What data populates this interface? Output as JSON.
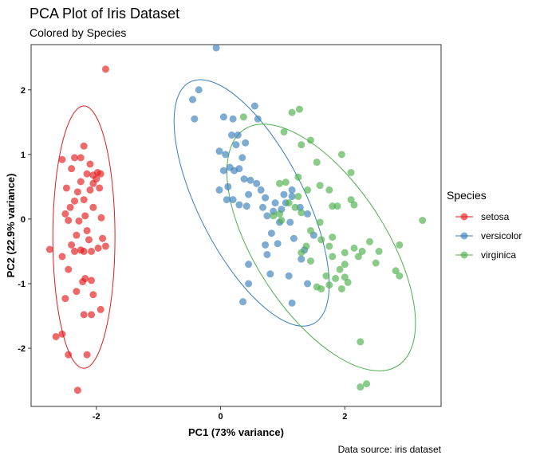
{
  "chart_data": {
    "type": "scatter",
    "title": "PCA Plot of Iris Dataset",
    "subtitle": "Colored by Species",
    "xlabel": "PC1 (73% variance)",
    "ylabel": "PC2 (22.9% variance)",
    "caption": "Data source: iris dataset",
    "xlim": [
      -3.05,
      3.55
    ],
    "ylim": [
      -2.9,
      2.7
    ],
    "x_ticks": [
      -2,
      0,
      2
    ],
    "x_tick_labels": [
      "-2",
      "0",
      "2"
    ],
    "y_ticks": [
      -2,
      -1,
      0,
      1,
      2
    ],
    "y_tick_labels": [
      "-2",
      "-1",
      "0",
      "1",
      "2"
    ],
    "grid": false,
    "legend": {
      "title": "Species",
      "position": "right"
    },
    "series": [
      {
        "name": "setosa",
        "color": "#E41A1C",
        "ellipse": {
          "cx": -2.2,
          "cy": -0.28,
          "rx": 0.5,
          "ry": 2.03,
          "angle": 0
        },
        "points": [
          [
            -1.85,
            2.32
          ],
          [
            -2.2,
            1.13
          ],
          [
            -2.35,
            0.95
          ],
          [
            -2.25,
            0.95
          ],
          [
            -2.1,
            0.85
          ],
          [
            -2.4,
            0.78
          ],
          [
            -2.55,
            0.92
          ],
          [
            -1.98,
            0.72
          ],
          [
            -2.05,
            0.68
          ],
          [
            -1.93,
            0.7
          ],
          [
            -2.0,
            0.62
          ],
          [
            -2.15,
            0.7
          ],
          [
            -2.25,
            0.58
          ],
          [
            -2.05,
            0.55
          ],
          [
            -1.95,
            0.48
          ],
          [
            -2.48,
            0.48
          ],
          [
            -2.3,
            0.42
          ],
          [
            -2.1,
            0.45
          ],
          [
            -2.2,
            0.3
          ],
          [
            -2.35,
            0.28
          ],
          [
            -2.05,
            0.18
          ],
          [
            -2.42,
            0.18
          ],
          [
            -2.5,
            0.08
          ],
          [
            -2.18,
            0.05
          ],
          [
            -1.92,
            0.02
          ],
          [
            -2.28,
            -0.03
          ],
          [
            -2.45,
            -0.02
          ],
          [
            -2.15,
            -0.18
          ],
          [
            -2.32,
            -0.25
          ],
          [
            -2.12,
            -0.32
          ],
          [
            -1.9,
            -0.3
          ],
          [
            -2.4,
            -0.4
          ],
          [
            -1.85,
            -0.42
          ],
          [
            -1.97,
            -0.45
          ],
          [
            -2.25,
            -0.48
          ],
          [
            -2.75,
            -0.47
          ],
          [
            -2.35,
            -0.5
          ],
          [
            -2.2,
            -0.5
          ],
          [
            -2.08,
            -0.5
          ],
          [
            -2.55,
            -0.58
          ],
          [
            -2.45,
            -0.78
          ],
          [
            -2.18,
            -0.92
          ],
          [
            -2.22,
            -0.97
          ],
          [
            -2.08,
            -0.95
          ],
          [
            -2.32,
            -1.12
          ],
          [
            -2.05,
            -1.17
          ],
          [
            -2.5,
            -1.23
          ],
          [
            -1.93,
            -1.4
          ],
          [
            -2.2,
            -1.48
          ],
          [
            -2.08,
            -1.48
          ],
          [
            -2.55,
            -1.78
          ],
          [
            -2.45,
            -2.1
          ],
          [
            -2.15,
            -2.1
          ],
          [
            -2.3,
            -2.65
          ],
          [
            -2.65,
            -1.82
          ]
        ]
      },
      {
        "name": "versicolor",
        "color": "#377EB8",
        "ellipse": {
          "cx": 0.5,
          "cy": 0.25,
          "rx": 0.85,
          "ry": 2.1,
          "angle": -27
        },
        "points": [
          [
            -0.07,
            2.65
          ],
          [
            -0.35,
            2.0
          ],
          [
            -0.45,
            1.85
          ],
          [
            -0.42,
            1.55
          ],
          [
            0.05,
            1.58
          ],
          [
            0.2,
            1.55
          ],
          [
            0.55,
            1.75
          ],
          [
            0.6,
            1.55
          ],
          [
            0.18,
            1.3
          ],
          [
            0.28,
            1.3
          ],
          [
            0.4,
            1.18
          ],
          [
            0.25,
            1.15
          ],
          [
            -0.02,
            1.05
          ],
          [
            0.08,
            1.0
          ],
          [
            0.15,
            0.8
          ],
          [
            0.35,
            0.95
          ],
          [
            0.3,
            0.78
          ],
          [
            0.22,
            0.75
          ],
          [
            0.38,
            0.62
          ],
          [
            0.48,
            0.6
          ],
          [
            0.58,
            0.55
          ],
          [
            0.45,
            0.38
          ],
          [
            0.05,
            0.75
          ],
          [
            0.12,
            0.5
          ],
          [
            -0.02,
            0.45
          ],
          [
            0.1,
            0.3
          ],
          [
            0.2,
            0.3
          ],
          [
            0.3,
            0.22
          ],
          [
            0.42,
            0.2
          ],
          [
            0.65,
            0.45
          ],
          [
            0.72,
            0.33
          ],
          [
            0.68,
            0.18
          ],
          [
            0.75,
            0.05
          ],
          [
            0.85,
            0.12
          ],
          [
            1.02,
            0.38
          ],
          [
            0.88,
            0.25
          ],
          [
            0.98,
            0.15
          ],
          [
            1.05,
            0.25
          ],
          [
            1.15,
            0.35
          ],
          [
            1.15,
            0.45
          ],
          [
            1.28,
            0.18
          ],
          [
            0.95,
            -0.05
          ],
          [
            1.12,
            -0.05
          ],
          [
            0.82,
            -0.22
          ],
          [
            1.4,
            0.08
          ],
          [
            0.72,
            -0.4
          ],
          [
            0.92,
            -0.38
          ],
          [
            1.18,
            -0.3
          ],
          [
            1.5,
            -0.25
          ],
          [
            0.75,
            -0.55
          ],
          [
            1.35,
            -0.48
          ],
          [
            0.45,
            -0.7
          ],
          [
            1.3,
            -0.62
          ],
          [
            0.45,
            -1.0
          ],
          [
            0.8,
            -0.85
          ],
          [
            1.1,
            -0.88
          ],
          [
            1.4,
            -1.0
          ],
          [
            1.15,
            -1.3
          ],
          [
            0.36,
            -1.28
          ]
        ]
      },
      {
        "name": "virginica",
        "color": "#4DAF4A",
        "ellipse": {
          "cx": 1.62,
          "cy": -0.44,
          "rx": 1.05,
          "ry": 2.18,
          "angle": -33
        },
        "points": [
          [
            1.27,
            1.7
          ],
          [
            1.15,
            1.65
          ],
          [
            0.37,
            1.58
          ],
          [
            1.02,
            1.35
          ],
          [
            1.45,
            1.22
          ],
          [
            1.3,
            1.15
          ],
          [
            1.95,
            1.0
          ],
          [
            1.55,
            0.88
          ],
          [
            2.1,
            0.72
          ],
          [
            1.25,
            0.65
          ],
          [
            1.05,
            0.57
          ],
          [
            1.6,
            0.52
          ],
          [
            0.95,
            0.55
          ],
          [
            1.4,
            0.45
          ],
          [
            1.75,
            0.45
          ],
          [
            2.1,
            0.3
          ],
          [
            1.25,
            0.35
          ],
          [
            1.1,
            0.25
          ],
          [
            1.2,
            0.18
          ],
          [
            1.3,
            0.1
          ],
          [
            1.8,
            0.2
          ],
          [
            1.88,
            0.2
          ],
          [
            2.15,
            0.22
          ],
          [
            0.95,
            0.08
          ],
          [
            0.85,
            0.05
          ],
          [
            0.98,
            -0.02
          ],
          [
            1.6,
            -0.05
          ],
          [
            1.45,
            -0.18
          ],
          [
            1.8,
            -0.28
          ],
          [
            1.75,
            -0.42
          ],
          [
            1.62,
            -0.32
          ],
          [
            1.38,
            -0.42
          ],
          [
            2.4,
            -0.35
          ],
          [
            2.15,
            -0.45
          ],
          [
            2.0,
            -0.52
          ],
          [
            1.8,
            -0.58
          ],
          [
            2.28,
            -0.5
          ],
          [
            2.55,
            -0.5
          ],
          [
            2.88,
            -0.4
          ],
          [
            3.25,
            -0.02
          ],
          [
            1.45,
            -0.65
          ],
          [
            2.0,
            -0.7
          ],
          [
            2.5,
            -0.68
          ],
          [
            2.22,
            -0.58
          ],
          [
            1.92,
            -0.78
          ],
          [
            1.7,
            -0.88
          ],
          [
            1.85,
            -0.92
          ],
          [
            2.0,
            -0.9
          ],
          [
            2.05,
            -0.98
          ],
          [
            1.62,
            -1.08
          ],
          [
            1.75,
            -1.02
          ],
          [
            2.82,
            -0.8
          ],
          [
            2.88,
            -0.88
          ],
          [
            1.3,
            -0.52
          ],
          [
            2.25,
            -1.9
          ],
          [
            2.25,
            -2.6
          ],
          [
            2.35,
            -2.55
          ],
          [
            1.95,
            -1.08
          ],
          [
            1.55,
            -1.05
          ]
        ]
      }
    ]
  }
}
